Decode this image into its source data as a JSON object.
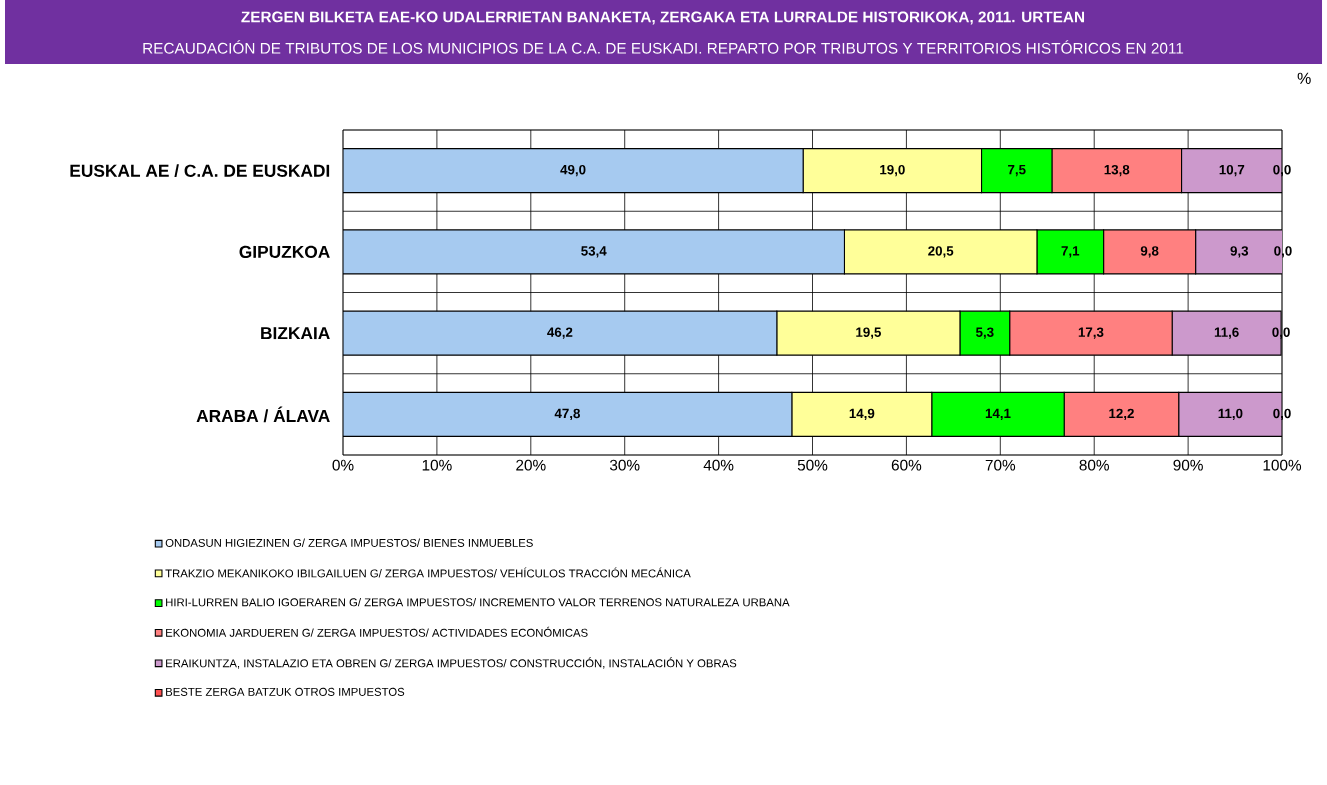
{
  "chart_data": {
    "type": "bar",
    "orientation": "horizontal",
    "stacked": true,
    "title": "ZERGEN BILKETA EAE-KO UDALERRIETAN BANAKETA, ZERGAKA ETA LURRALDE HISTORIKOKA, 2011. URTEAN",
    "subtitle": "RECAUDACIÓN DE TRIBUTOS DE LOS MUNICIPIOS DE LA C.A. DE EUSKADI. REPARTO POR TRIBUTOS Y TERRITORIOS HISTÓRICOS EN 2011",
    "annotations": [
      "%"
    ],
    "categories": [
      "EUSKAL AE / C.A. DE EUSKADI",
      "GIPUZKOA",
      "BIZKAIA",
      "ARABA / ÁLAVA"
    ],
    "xlim": [
      0,
      100
    ],
    "xticks": [
      {
        "value": 0,
        "label": "0%"
      },
      {
        "value": 10,
        "label": "10%"
      },
      {
        "value": 20,
        "label": "20%"
      },
      {
        "value": 30,
        "label": "30%"
      },
      {
        "value": 40,
        "label": "40%"
      },
      {
        "value": 50,
        "label": "50%"
      },
      {
        "value": 60,
        "label": "60%"
      },
      {
        "value": 70,
        "label": "70%"
      },
      {
        "value": 80,
        "label": "80%"
      },
      {
        "value": 90,
        "label": "90%"
      },
      {
        "value": 100,
        "label": "100%"
      }
    ],
    "grid": true,
    "legend": "bottom left",
    "series": [
      {
        "name": "ONDASUN HIGIEZINEN G/ ZERGA IMPUESTOS/ BIENES INMUEBLES",
        "color": "#a6caf0",
        "values": [
          49.0,
          53.4,
          46.2,
          47.8
        ],
        "value_labels": [
          "49,0",
          "53,4",
          "46,2",
          "47,8"
        ]
      },
      {
        "name": "TRAKZIO MEKANIKOKO IBILGAILUEN G/ ZERGA IMPUESTOS/ VEHÍCULOS TRACCIÓN MECÁNICA",
        "color": "#ffff99",
        "values": [
          19.0,
          20.5,
          19.5,
          14.9
        ],
        "value_labels": [
          "19,0",
          "20,5",
          "19,5",
          "14,9"
        ]
      },
      {
        "name": "HIRI-LURREN BALIO IGOERAREN G/ ZERGA IMPUESTOS/ INCREMENTO VALOR TERRENOS NATURALEZA URBANA",
        "color": "#00ff00",
        "values": [
          7.5,
          7.1,
          5.3,
          14.1
        ],
        "value_labels": [
          "7,5",
          "7,1",
          "5,3",
          "14,1"
        ]
      },
      {
        "name": "EKONOMIA JARDUEREN G/ ZERGA IMPUESTOS/ ACTIVIDADES ECONÓMICAS",
        "color": "#ff8080",
        "values": [
          13.8,
          9.8,
          17.3,
          12.2
        ],
        "value_labels": [
          "13,8",
          "9,8",
          "17,3",
          "12,2"
        ]
      },
      {
        "name": "ERAIKUNTZA, INSTALAZIO ETA OBREN G/ ZERGA IMPUESTOS/ CONSTRUCCIÓN, INSTALACIÓN Y OBRAS",
        "color": "#cc99cc",
        "values": [
          10.7,
          9.3,
          11.6,
          11.0
        ],
        "value_labels": [
          "10,7",
          "9,3",
          "11,6",
          "11,0"
        ]
      },
      {
        "name": "BESTE ZERGA BATZUK OTROS IMPUESTOS",
        "color": "#ff5050",
        "values": [
          0.0,
          0.0,
          0.0,
          0.0
        ],
        "value_labels": [
          "0,0",
          "0,0",
          "0,0",
          "0,0"
        ]
      }
    ]
  }
}
